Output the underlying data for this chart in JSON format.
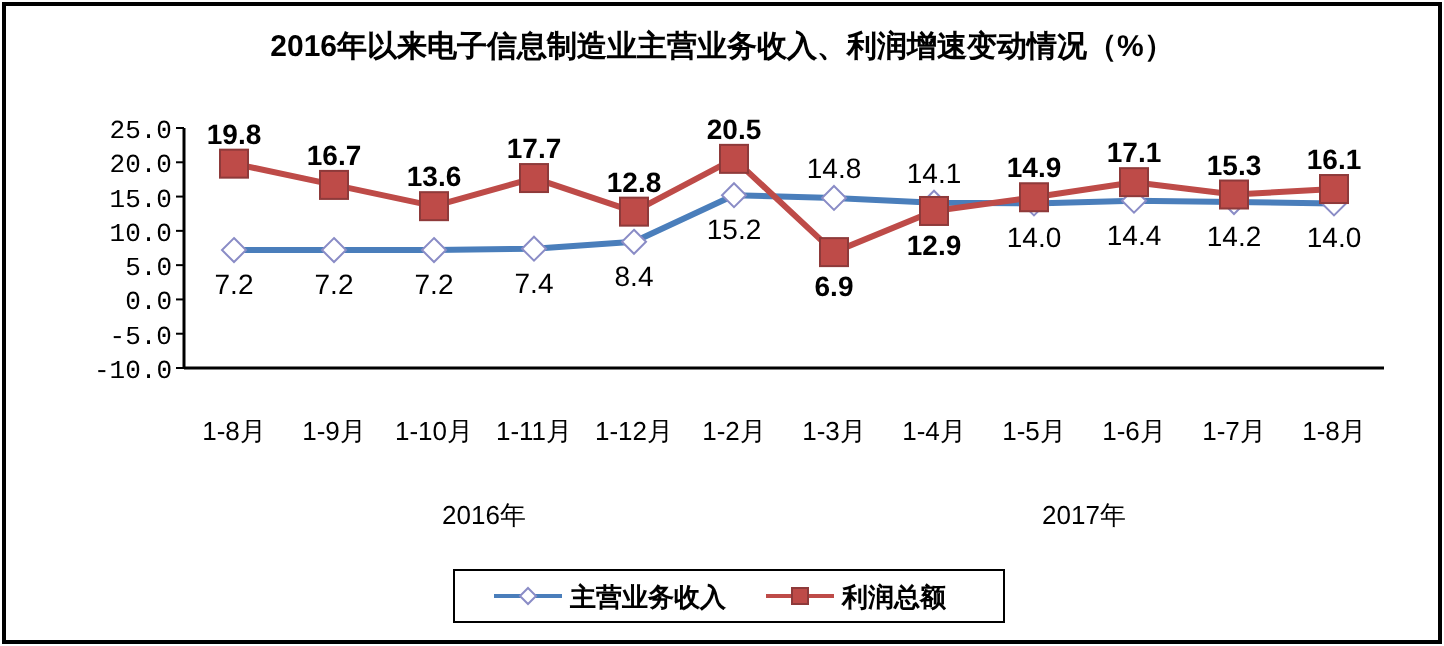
{
  "chart_data": {
    "type": "line",
    "title": "2016年以来电子信息制造业主营业务收入、利润增速变动情况（%）",
    "categories": [
      "1-8月",
      "1-9月",
      "1-10月",
      "1-11月",
      "1-12月",
      "1-2月",
      "1-3月",
      "1-4月",
      "1-5月",
      "1-6月",
      "1-7月",
      "1-8月"
    ],
    "series": [
      {
        "name": "主营业务收入",
        "color": "#4a7ebb",
        "marker": "diamond",
        "values": [
          7.2,
          7.2,
          7.2,
          7.4,
          8.4,
          15.2,
          14.8,
          14.1,
          14.0,
          14.4,
          14.2,
          14.0
        ],
        "value_labels": [
          "7.2",
          "7.2",
          "7.2",
          "7.4",
          "8.4",
          "15.2",
          "14.8",
          "14.1",
          "14.0",
          "14.4",
          "14.2",
          "14.0"
        ]
      },
      {
        "name": "利润总额",
        "color": "#be4b48",
        "marker": "square",
        "values": [
          19.8,
          16.7,
          13.6,
          17.7,
          12.8,
          20.5,
          6.9,
          12.9,
          14.9,
          17.1,
          15.3,
          16.1
        ],
        "value_labels": [
          "19.8",
          "16.7",
          "13.6",
          "17.7",
          "12.8",
          "20.5",
          "6.9",
          "12.9",
          "14.9",
          "17.1",
          "15.3",
          "16.1"
        ]
      }
    ],
    "ylim": [
      -10,
      25
    ],
    "yticks": [
      {
        "value": -10,
        "label": "-10.0"
      },
      {
        "value": -5,
        "label": "-5.0"
      },
      {
        "value": 0,
        "label": "0.0"
      },
      {
        "value": 5,
        "label": "5.0"
      },
      {
        "value": 10,
        "label": "10.0"
      },
      {
        "value": 15,
        "label": "15.0"
      },
      {
        "value": 20,
        "label": "20.0"
      },
      {
        "value": 25,
        "label": "25.0"
      }
    ],
    "grid": false,
    "legend": "bottom",
    "annotations": [
      "2016年",
      "2017年"
    ]
  }
}
